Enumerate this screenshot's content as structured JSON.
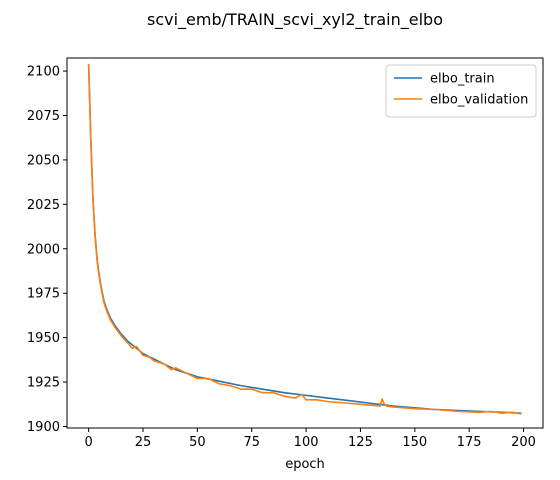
{
  "chart_data": {
    "type": "line",
    "title": "scvi_emb/TRAIN_scvi_xyl2_train_elbo",
    "xlabel": "epoch",
    "ylabel": "",
    "xlim": [
      -9.95,
      208.95
    ],
    "ylim": [
      1899.15,
      2107.35
    ],
    "xticks": [
      0,
      25,
      50,
      75,
      100,
      125,
      150,
      175,
      200
    ],
    "yticks": [
      1900,
      1925,
      1950,
      1975,
      2000,
      2025,
      2050,
      2075,
      2100
    ],
    "legend_position": "top-right",
    "grid": false,
    "series": [
      {
        "name": "elbo_train",
        "color": "#1f77b4",
        "x": [
          0,
          1,
          2,
          3,
          4,
          5,
          6,
          7,
          8,
          10,
          12,
          15,
          18,
          20,
          25,
          30,
          35,
          40,
          45,
          50,
          60,
          70,
          80,
          90,
          100,
          110,
          120,
          130,
          140,
          150,
          160,
          170,
          180,
          190,
          199
        ],
        "y": [
          2104,
          2062,
          2028,
          2007,
          1993,
          1984,
          1977,
          1971,
          1967,
          1961,
          1957,
          1952,
          1948,
          1946,
          1941,
          1938,
          1935,
          1932,
          1930,
          1928,
          1925.5,
          1923,
          1921,
          1919,
          1917.5,
          1916,
          1914.5,
          1913,
          1911.5,
          1910.5,
          1909.5,
          1909,
          1908.5,
          1908,
          1907.5
        ]
      },
      {
        "name": "elbo_validation",
        "color": "#ff7f0e",
        "x": [
          0,
          1,
          2,
          3,
          4,
          5,
          6,
          7,
          8,
          10,
          12,
          15,
          18,
          20,
          22,
          25,
          28,
          30,
          35,
          38,
          40,
          45,
          50,
          55,
          60,
          65,
          70,
          75,
          80,
          85,
          90,
          95,
          98,
          100,
          105,
          110,
          115,
          120,
          125,
          130,
          134,
          135,
          136,
          137,
          140,
          150,
          160,
          170,
          180,
          185,
          190,
          195,
          199
        ],
        "y": [
          2104,
          2061,
          2027,
          2006,
          1992,
          1983,
          1976,
          1970,
          1966,
          1960,
          1956,
          1951,
          1947,
          1944,
          1945,
          1940,
          1939,
          1937,
          1935,
          1932,
          1933,
          1930,
          1927,
          1927,
          1924,
          1923,
          1921,
          1921,
          1919,
          1919,
          1917,
          1916,
          1918,
          1915,
          1915,
          1914,
          1913.5,
          1913,
          1912.5,
          1912,
          1911.5,
          1915.5,
          1912.5,
          1911.5,
          1911,
          1910,
          1909.5,
          1908.5,
          1908,
          1908.5,
          1907.5,
          1908,
          1907
        ]
      }
    ]
  }
}
